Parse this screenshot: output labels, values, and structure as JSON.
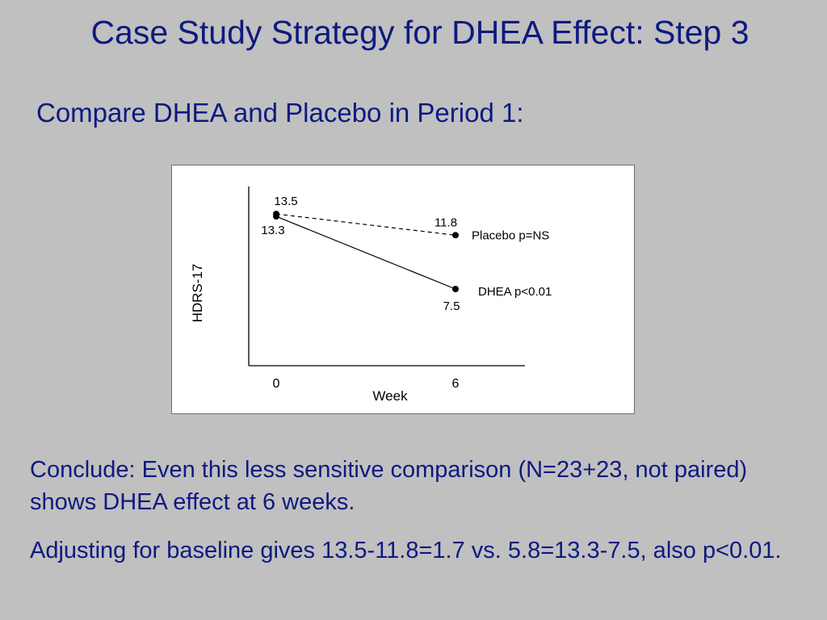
{
  "slide": {
    "title": "Case Study Strategy for DHEA Effect: Step 3",
    "subtitle": "Compare DHEA and Placebo in Period 1:",
    "conclusion_1": "Conclude: Even this less sensitive comparison (N=23+23, not paired) shows DHEA effect at 6 weeks.",
    "conclusion_2": "Adjusting for baseline gives 13.5-11.8=1.7 vs. 5.8=13.3-7.5, also p<0.01."
  },
  "chart_data": {
    "type": "line",
    "title": "",
    "xlabel": "Week",
    "ylabel": "HDRS-17",
    "categories": [
      "0",
      "6"
    ],
    "x": [
      0,
      6
    ],
    "ylim": [
      0,
      14.5
    ],
    "grid": false,
    "series": [
      {
        "name": "Placebo p=NS",
        "values": [
          13.5,
          11.8
        ],
        "labels": [
          "13.5",
          "11.8"
        ],
        "line_style": "dashed",
        "color": "#000000"
      },
      {
        "name": "DHEA p<0.01",
        "values": [
          13.3,
          7.5
        ],
        "labels": [
          "13.3",
          "7.5"
        ],
        "line_style": "solid",
        "color": "#000000"
      }
    ]
  },
  "colors": {
    "background": "#c0c0c0",
    "text": "#0d1a80",
    "chart_background": "#ffffff"
  }
}
